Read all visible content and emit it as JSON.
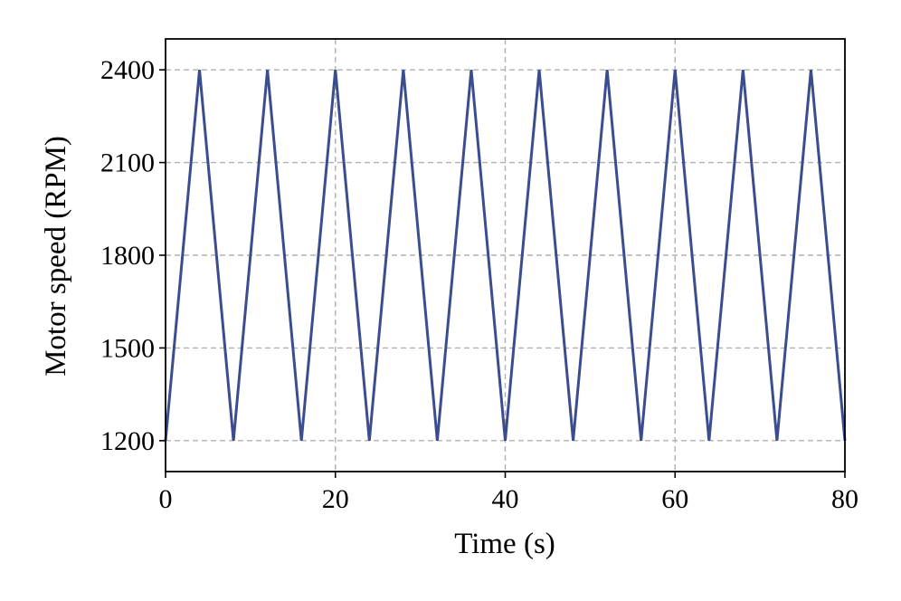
{
  "chart_data": {
    "type": "line",
    "title": "",
    "xlabel": "Time (s)",
    "ylabel": "Motor speed (RPM)",
    "xlim": [
      0,
      80
    ],
    "ylim": [
      1100,
      2500
    ],
    "xticks": [
      0,
      20,
      40,
      60,
      80
    ],
    "yticks": [
      1200,
      1500,
      1800,
      2100,
      2400
    ],
    "grid": true,
    "legend": "none",
    "series": [
      {
        "color": "#3b4d8f",
        "x": [
          0,
          4,
          8,
          12,
          16,
          20,
          24,
          28,
          32,
          36,
          40,
          44,
          48,
          52,
          56,
          60,
          64,
          68,
          72,
          76,
          80
        ],
        "y": [
          1200,
          2400,
          1200,
          2400,
          1200,
          2400,
          1200,
          2400,
          1200,
          2400,
          1200,
          2400,
          1200,
          2400,
          1200,
          2400,
          1200,
          2400,
          1200,
          2400,
          1200
        ]
      }
    ]
  }
}
